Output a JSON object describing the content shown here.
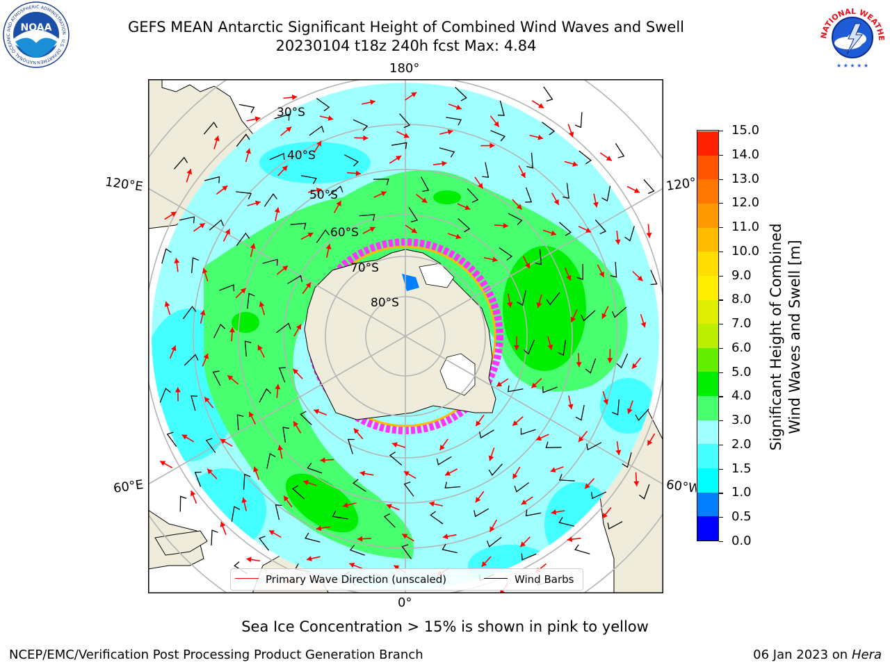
{
  "title": {
    "line1": "GEFS MEAN Antarctic Significant Height of Combined Wind Waves and Swell",
    "line2": "20230104 t18z 240h fcst   Max: 4.84"
  },
  "map": {
    "lon_labels": {
      "top": "180°",
      "bottom": "0°",
      "upper_left": "120°E",
      "upper_right": "120°W",
      "lower_left": "60°E",
      "lower_right": "60°W"
    },
    "lat_labels": [
      "30°S",
      "40°S",
      "50°S",
      "60°S",
      "70°S",
      "80°S"
    ],
    "colors": {
      "land": "#efecdb",
      "coast": "#000000",
      "grid": "#b4b4b4",
      "arrow": "#ff0000",
      "barb": "#000000",
      "sea_ice": "#ff33ff"
    }
  },
  "colorbar": {
    "label": "Significant Height of Combined\nWind Waves and Swell [m]",
    "ticks": [
      "0.0",
      "0.5",
      "1.0",
      "1.5",
      "2.0",
      "3.0",
      "4.0",
      "5.0",
      "6.0",
      "7.0",
      "8.0",
      "9.0",
      "10.0",
      "11.0",
      "12.0",
      "13.0",
      "14.0",
      "15.0"
    ],
    "colors": [
      "#0000ff",
      "#0080ff",
      "#00ffff",
      "#44ffff",
      "#a0ffff",
      "#48ff70",
      "#00ee00",
      "#66ee00",
      "#bbee00",
      "#ddee00",
      "#ffee00",
      "#ffdd00",
      "#ffbb00",
      "#ff9900",
      "#ff7700",
      "#ff5500",
      "#ff2200"
    ]
  },
  "legend": {
    "primary_wave": "Primary Wave Direction (unscaled)",
    "wind_barbs": "Wind Barbs"
  },
  "subtitle": "Sea Ice Concentration > 15% is shown in pink to yellow",
  "footer": {
    "left": "NCEP/EMC/Verification Post Processing Product Generation Branch",
    "right_date": "06 Jan 2023 on ",
    "right_host": "Hera"
  },
  "logos": {
    "noaa_text": "NOAA",
    "noaa_ring": "NATIONAL OCEANIC AND ATMOSPHERIC ADMINISTRATION · U.S. DEPARTMENT OF COMMERCE",
    "nws_ring": "NATIONAL WEATHER SERVICE"
  }
}
